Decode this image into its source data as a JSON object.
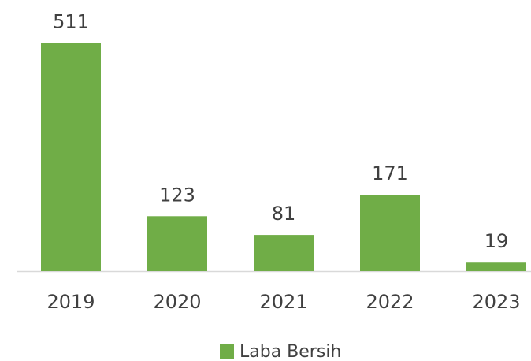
{
  "chart_data": {
    "type": "bar",
    "categories": [
      "2019",
      "2020",
      "2021",
      "2022",
      "2023"
    ],
    "series": [
      {
        "name": "Laba Bersih",
        "color": "#70ad47",
        "values": [
          511,
          123,
          81,
          171,
          19
        ]
      }
    ],
    "ylim": [
      0,
      600
    ]
  }
}
